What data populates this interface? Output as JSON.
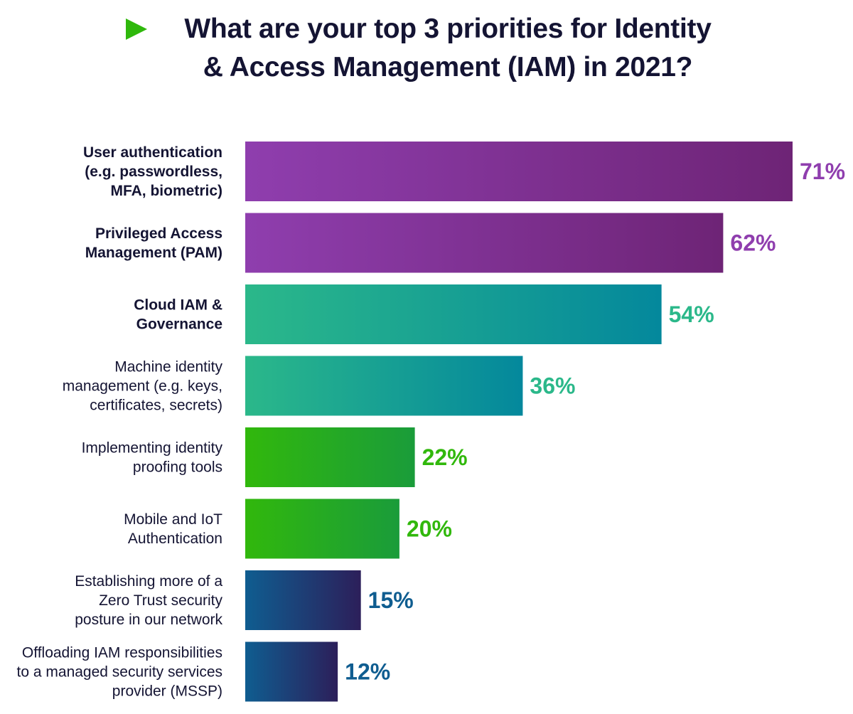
{
  "title": "What are your top 3 priorities for Identity\n& Access Management (IAM) in 2021?",
  "title_icon": "play-triangle-icon",
  "colors": {
    "title_icon": "#2fb80c",
    "purple": [
      "#8f3eae",
      "#6e2476"
    ],
    "teal": [
      "#2bb88a",
      "#04889c"
    ],
    "green": [
      "#31b80c",
      "#1a9c3a"
    ],
    "navy": [
      "#0f5d90",
      "#2c1f5a"
    ]
  },
  "chart_data": {
    "type": "bar",
    "orientation": "horizontal",
    "title": "What are your top 3 priorities for Identity & Access Management (IAM) in 2021?",
    "xlim": [
      0,
      71
    ],
    "unit": "%",
    "categories": [
      {
        "lines": [
          "User authentication",
          "(e.g. passwordless,",
          "MFA, biometric)"
        ],
        "value": 71,
        "label": "71%",
        "group": "purple",
        "bold": true
      },
      {
        "lines": [
          "Privileged Access",
          "Management (PAM)"
        ],
        "value": 62,
        "label": "62%",
        "group": "purple",
        "bold": true
      },
      {
        "lines": [
          "Cloud IAM &",
          "Governance"
        ],
        "value": 54,
        "label": "54%",
        "group": "teal",
        "bold": true
      },
      {
        "lines": [
          "Machine identity",
          "management (e.g. keys,",
          "certificates, secrets)"
        ],
        "value": 36,
        "label": "36%",
        "group": "teal",
        "bold": false
      },
      {
        "lines": [
          "Implementing identity",
          "proofing tools"
        ],
        "value": 22,
        "label": "22%",
        "group": "green",
        "bold": false
      },
      {
        "lines": [
          "Mobile and IoT",
          "Authentication"
        ],
        "value": 20,
        "label": "20%",
        "group": "green",
        "bold": false
      },
      {
        "lines": [
          "Establishing more of a",
          "Zero Trust security",
          "posture in our network"
        ],
        "value": 15,
        "label": "15%",
        "group": "navy",
        "bold": false
      },
      {
        "lines": [
          "Offloading IAM responsibilities",
          "to a managed security services",
          "provider (MSSP)"
        ],
        "value": 12,
        "label": "12%",
        "group": "navy",
        "bold": false
      }
    ]
  }
}
